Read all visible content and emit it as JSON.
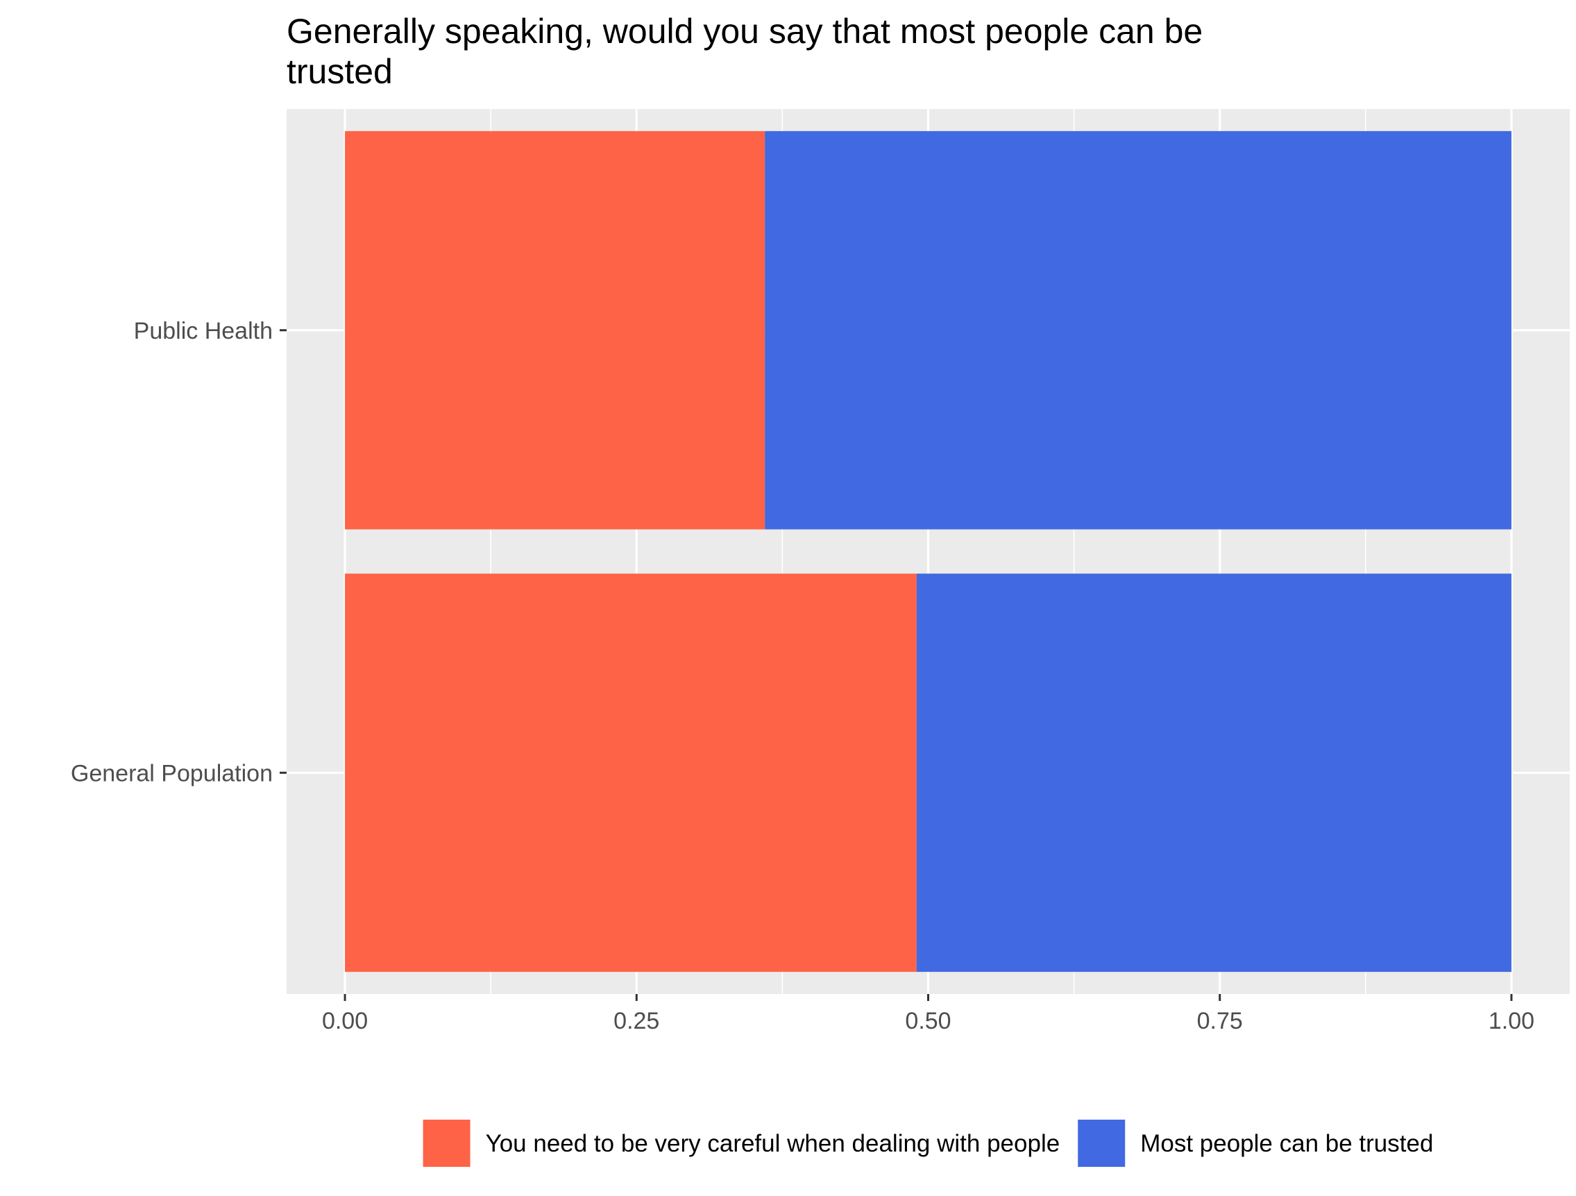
{
  "chart_data": {
    "type": "bar",
    "orientation": "horizontal",
    "stacked": true,
    "title": [
      "Generally speaking, would you say that most people can be",
      "trusted"
    ],
    "xlabel": "",
    "ylabel": "",
    "xlim": [
      -0.05,
      1.05
    ],
    "x_ticks": [
      0.0,
      0.25,
      0.5,
      0.75,
      1.0
    ],
    "x_tick_labels": [
      "0.00",
      "0.25",
      "0.50",
      "0.75",
      "1.00"
    ],
    "categories": [
      "Public Health",
      "General Population"
    ],
    "series": [
      {
        "name": "You need to be very careful when dealing with people",
        "color": "#FF6347",
        "values": [
          0.36,
          0.49
        ]
      },
      {
        "name": "Most people can be trusted",
        "color": "#4169E1",
        "values": [
          0.64,
          0.51
        ]
      }
    ],
    "grid": true,
    "panel_background": "#EBEBEB",
    "legend_position": "bottom"
  }
}
